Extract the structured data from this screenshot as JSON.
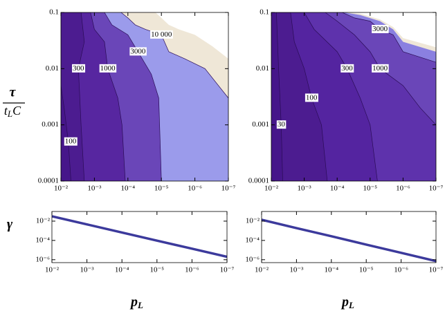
{
  "chart_data": [
    {
      "type": "contour",
      "log_x": true,
      "log_y": true,
      "xlim": [
        0.01,
        1e-07
      ],
      "ylim": [
        0.0001,
        0.1
      ],
      "xticks": [
        {
          "value": 0.01,
          "label": "10⁻²"
        },
        {
          "value": 0.001,
          "label": "10⁻³"
        },
        {
          "value": 0.0001,
          "label": "10⁻⁴"
        },
        {
          "value": 1e-05,
          "label": "10⁻⁵"
        },
        {
          "value": 1e-06,
          "label": "10⁻⁶"
        },
        {
          "value": 1e-07,
          "label": "10⁻⁷"
        }
      ],
      "yticks": [
        0.1,
        0.01,
        0.001,
        0.0001
      ],
      "ylabel": {
        "numerator": "τ",
        "denominator": "t",
        "subscript": "L",
        "suffix": "C"
      },
      "base_color": "#46168a",
      "contours": [
        {
          "level": 100,
          "color": "#4c1c90",
          "x": [
            0.01,
            0.008,
            0.006,
            0.005
          ],
          "y": [
            0.005,
            0.002,
            0.0005,
            0.0001
          ]
        },
        {
          "level": 300,
          "color": "#5726a0",
          "x": [
            0.0025,
            0.002,
            0.003,
            0.0025,
            0.002
          ],
          "y": [
            0.1,
            0.03,
            0.01,
            0.001,
            0.0001
          ]
        },
        {
          "level": 1000,
          "color": "#6a46b8",
          "x": [
            0.0013,
            0.001,
            0.0005,
            0.0004,
            0.0002,
            0.00015,
            0.00012
          ],
          "y": [
            0.1,
            0.05,
            0.03,
            0.01,
            0.003,
            0.001,
            0.0001
          ]
        },
        {
          "level": 3000,
          "color": "#9b9beb",
          "x": [
            0.0005,
            0.0003,
            0.0001,
            5e-05,
            2e-05,
            1.2e-05,
            1e-05
          ],
          "y": [
            0.1,
            0.06,
            0.04,
            0.02,
            0.008,
            0.003,
            0.0001
          ]
        },
        {
          "level": 10000,
          "value_label": "10 000",
          "color": "#efe7d7",
          "x": [
            0.00016,
            0.0001,
            6e-05,
            3e-05,
            1e-05,
            6e-06,
            2e-06,
            5e-07,
            1e-07
          ],
          "y": [
            0.1,
            0.08,
            0.06,
            0.05,
            0.04,
            0.02,
            0.015,
            0.01,
            0.003
          ]
        }
      ],
      "boundaries": [
        {
          "color": "#ffffff",
          "x": [
            1.5e-05,
            1e-05,
            6e-06,
            3e-06,
            1e-06,
            3e-07,
            1e-07
          ],
          "y": [
            0.1,
            0.08,
            0.06,
            0.05,
            0.04,
            0.025,
            0.015
          ]
        }
      ]
    },
    {
      "type": "contour",
      "log_x": true,
      "log_y": true,
      "xlim": [
        0.01,
        1e-07
      ],
      "ylim": [
        0.0001,
        0.1
      ],
      "xticks": [
        {
          "value": 0.01,
          "label": "10⁻²"
        },
        {
          "value": 0.001,
          "label": "10⁻³"
        },
        {
          "value": 0.0001,
          "label": "10⁻⁴"
        },
        {
          "value": 1e-05,
          "label": "10⁻⁵"
        },
        {
          "value": 1e-06,
          "label": "10⁻⁶"
        },
        {
          "value": 1e-07,
          "label": "10⁻⁷"
        }
      ],
      "yticks": [
        0.1,
        0.01,
        0.001,
        0.0001
      ],
      "base_color": "#46168a",
      "contours": [
        {
          "level": 30,
          "color": "#4c1c90",
          "x": [
            0.007,
            0.006,
            0.005,
            0.0045
          ],
          "y": [
            0.1,
            0.01,
            0.001,
            0.0001
          ]
        },
        {
          "level": 100,
          "color": "#5424a0",
          "x": [
            0.0026,
            0.002,
            0.001,
            0.0006,
            0.0003,
            0.0002
          ],
          "y": [
            0.1,
            0.03,
            0.01,
            0.003,
            0.001,
            0.0001
          ]
        },
        {
          "level": 300,
          "color": "#5e32ac",
          "x": [
            0.001,
            0.0005,
            0.0001,
            5e-05,
            2e-05,
            1e-05,
            6e-06
          ],
          "y": [
            0.1,
            0.05,
            0.02,
            0.01,
            0.003,
            0.001,
            0.0001
          ]
        },
        {
          "level": 1000,
          "color": "#6a46b8",
          "x": [
            0.00023,
            0.0001,
            3e-05,
            1e-05,
            5e-06,
            1e-06,
            3e-07,
            1e-07
          ],
          "y": [
            0.1,
            0.07,
            0.04,
            0.02,
            0.01,
            0.005,
            0.002,
            0.001
          ]
        },
        {
          "level": 3000,
          "color": "#8a80e0",
          "x": [
            7e-05,
            3e-05,
            1e-05,
            5e-06,
            2e-06,
            1e-06,
            1e-07
          ],
          "y": [
            0.1,
            0.08,
            0.07,
            0.05,
            0.04,
            0.02,
            0.013
          ]
        }
      ],
      "boundaries": [
        {
          "color": "#efe7d7",
          "x": [
            6e-05,
            2e-05,
            5e-06,
            2e-06,
            1e-06,
            1e-07
          ],
          "y": [
            0.1,
            0.09,
            0.07,
            0.05,
            0.03,
            0.02
          ]
        },
        {
          "color": "#ffffff",
          "x": [
            5e-05,
            2e-05,
            5e-06,
            2e-06,
            1e-06,
            1e-07
          ],
          "y": [
            0.1,
            0.095,
            0.075,
            0.055,
            0.035,
            0.024
          ]
        }
      ]
    },
    {
      "type": "line",
      "log_x": true,
      "log_y": true,
      "xlim": [
        0.01,
        1e-07
      ],
      "ylim": [
        5e-07,
        0.1
      ],
      "xticks": [
        {
          "value": 0.01,
          "label": "10⁻²"
        },
        {
          "value": 0.001,
          "label": "10⁻³"
        },
        {
          "value": 0.0001,
          "label": "10⁻⁴"
        },
        {
          "value": 1e-05,
          "label": "10⁻⁵"
        },
        {
          "value": 1e-06,
          "label": "10⁻⁶"
        },
        {
          "value": 1e-07,
          "label": "10⁻⁷"
        }
      ],
      "yticks": [
        {
          "value": 0.01,
          "label": "10⁻²"
        },
        {
          "value": 0.0001,
          "label": "10⁻⁴"
        },
        {
          "value": 1e-06,
          "label": "10⁻⁶"
        }
      ],
      "ylabel": "γ",
      "xlabel": {
        "base": "p",
        "subscript": "L"
      },
      "color": "#3c3a9c",
      "x": [
        0.01,
        0.001,
        0.0001,
        1e-05,
        1e-06,
        1e-07
      ],
      "values": [
        0.032,
        0.0046,
        0.00066,
        9.5e-05,
        1.4e-05,
        2e-06
      ]
    },
    {
      "type": "line",
      "log_x": true,
      "log_y": true,
      "xlim": [
        0.01,
        1e-07
      ],
      "ylim": [
        5e-07,
        0.1
      ],
      "xticks": [
        {
          "value": 0.01,
          "label": "10⁻²"
        },
        {
          "value": 0.001,
          "label": "10⁻³"
        },
        {
          "value": 0.0001,
          "label": "10⁻⁴"
        },
        {
          "value": 1e-05,
          "label": "10⁻⁵"
        },
        {
          "value": 1e-06,
          "label": "10⁻⁶"
        },
        {
          "value": 1e-07,
          "label": "10⁻⁷"
        }
      ],
      "yticks": [
        {
          "value": 0.01,
          "label": "10⁻²"
        },
        {
          "value": 0.0001,
          "label": "10⁻⁴"
        },
        {
          "value": 1e-06,
          "label": "10⁻⁶"
        }
      ],
      "xlabel": {
        "base": "p",
        "subscript": "L"
      },
      "color": "#3c3a9c",
      "x": [
        0.01,
        0.001,
        0.0001,
        1e-05,
        1e-06,
        1e-07
      ],
      "values": [
        0.014,
        0.0019,
        0.00027,
        3.7e-05,
        5.2e-06,
        7.2e-07
      ]
    }
  ]
}
